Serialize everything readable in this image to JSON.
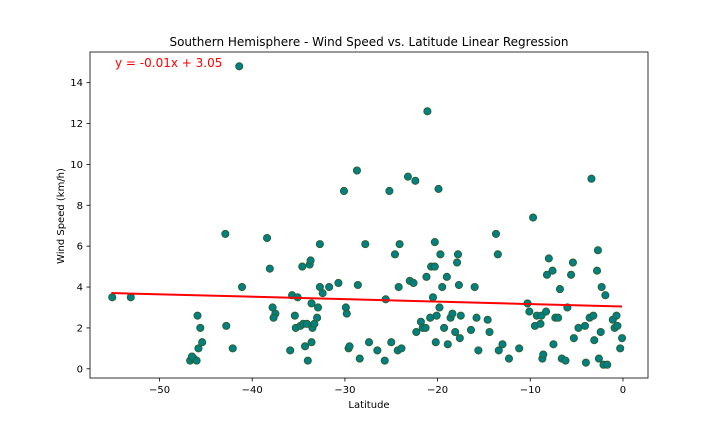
{
  "chart_data": {
    "type": "scatter",
    "title": "Southern Hemisphere - Wind Speed vs. Latitude Linear Regression",
    "xlabel": "Latitude",
    "ylabel": "Wind Speed (km/h)",
    "xlim": [
      -57.5,
      2.7
    ],
    "ylim": [
      -0.45,
      15.5
    ],
    "xticks": [
      -50,
      -40,
      -30,
      -20,
      -10,
      0
    ],
    "yticks": [
      0,
      2,
      4,
      6,
      8,
      10,
      12,
      14
    ],
    "grid": false,
    "marker_color": "#008080",
    "marker_edge_color": "#2e5e2e",
    "line_color": "#ff0000",
    "annotation": "y = -0.01x + 3.05",
    "regression": {
      "slope": -0.0119,
      "intercept": 3.05,
      "x_range": [
        -55.2,
        -0.1
      ]
    },
    "points": [
      [
        -55.1,
        3.5
      ],
      [
        -53.1,
        3.5
      ],
      [
        -46.7,
        0.4
      ],
      [
        -46.3,
        0.5
      ],
      [
        -46.0,
        0.4
      ],
      [
        -46.5,
        0.6
      ],
      [
        -45.9,
        2.6
      ],
      [
        -45.6,
        2.0
      ],
      [
        -45.4,
        1.3
      ],
      [
        -45.8,
        1.0
      ],
      [
        -42.9,
        6.6
      ],
      [
        -42.8,
        2.1
      ],
      [
        -42.1,
        1.0
      ],
      [
        -41.4,
        14.8
      ],
      [
        -41.1,
        4.0
      ],
      [
        -38.4,
        6.4
      ],
      [
        -38.1,
        4.9
      ],
      [
        -37.8,
        3.0
      ],
      [
        -37.5,
        2.7
      ],
      [
        -37.7,
        2.5
      ],
      [
        -35.9,
        0.9
      ],
      [
        -35.7,
        3.6
      ],
      [
        -35.4,
        2.6
      ],
      [
        -35.3,
        2.0
      ],
      [
        -35.1,
        3.5
      ],
      [
        -34.8,
        2.1
      ],
      [
        -34.5,
        2.2
      ],
      [
        -34.6,
        5.0
      ],
      [
        -34.3,
        1.1
      ],
      [
        -34.1,
        2.2
      ],
      [
        -34.0,
        0.4
      ],
      [
        -33.8,
        5.1
      ],
      [
        -33.6,
        3.2
      ],
      [
        -33.7,
        5.3
      ],
      [
        -33.5,
        2.0
      ],
      [
        -33.3,
        2.2
      ],
      [
        -33.6,
        1.3
      ],
      [
        -33.0,
        2.5
      ],
      [
        -32.9,
        3.0
      ],
      [
        -32.7,
        6.1
      ],
      [
        -32.4,
        3.7
      ],
      [
        -32.7,
        4.0
      ],
      [
        -31.7,
        4.0
      ],
      [
        -30.7,
        4.2
      ],
      [
        -30.1,
        8.7
      ],
      [
        -29.9,
        3.0
      ],
      [
        -29.8,
        2.7
      ],
      [
        -29.6,
        1.0
      ],
      [
        -29.5,
        1.1
      ],
      [
        -28.7,
        9.7
      ],
      [
        -28.6,
        4.1
      ],
      [
        -28.4,
        0.5
      ],
      [
        -27.8,
        6.1
      ],
      [
        -27.4,
        1.3
      ],
      [
        -26.5,
        0.9
      ],
      [
        -25.7,
        0.4
      ],
      [
        -25.6,
        3.4
      ],
      [
        -25.2,
        8.7
      ],
      [
        -25.0,
        1.3
      ],
      [
        -24.6,
        5.6
      ],
      [
        -24.2,
        4.0
      ],
      [
        -24.1,
        6.1
      ],
      [
        -24.3,
        0.9
      ],
      [
        -23.9,
        1.0
      ],
      [
        -23.2,
        9.4
      ],
      [
        -23.0,
        4.3
      ],
      [
        -22.6,
        4.2
      ],
      [
        -22.4,
        9.2
      ],
      [
        -22.3,
        1.8
      ],
      [
        -21.8,
        2.3
      ],
      [
        -21.6,
        2.0
      ],
      [
        -21.3,
        2.0
      ],
      [
        -21.2,
        4.5
      ],
      [
        -21.1,
        12.6
      ],
      [
        -20.8,
        2.5
      ],
      [
        -20.7,
        5.0
      ],
      [
        -20.5,
        3.5
      ],
      [
        -20.3,
        5.0
      ],
      [
        -20.2,
        1.3
      ],
      [
        -20.3,
        6.2
      ],
      [
        -20.1,
        2.6
      ],
      [
        -19.9,
        8.8
      ],
      [
        -19.8,
        3.0
      ],
      [
        -19.7,
        5.6
      ],
      [
        -19.5,
        4.0
      ],
      [
        -19.3,
        2.0
      ],
      [
        -19.0,
        4.5
      ],
      [
        -18.9,
        1.2
      ],
      [
        -18.6,
        2.5
      ],
      [
        -18.4,
        2.7
      ],
      [
        -18.1,
        1.8
      ],
      [
        -17.9,
        5.2
      ],
      [
        -17.8,
        5.6
      ],
      [
        -17.6,
        1.5
      ],
      [
        -17.7,
        4.1
      ],
      [
        -17.5,
        2.6
      ],
      [
        -16.4,
        1.9
      ],
      [
        -16.0,
        4.0
      ],
      [
        -15.8,
        2.5
      ],
      [
        -15.6,
        0.9
      ],
      [
        -14.6,
        2.4
      ],
      [
        -14.4,
        1.8
      ],
      [
        -13.7,
        6.6
      ],
      [
        -13.5,
        5.6
      ],
      [
        -13.4,
        0.9
      ],
      [
        -13.0,
        1.2
      ],
      [
        -12.3,
        0.5
      ],
      [
        -11.2,
        1.0
      ],
      [
        -10.3,
        3.2
      ],
      [
        -10.1,
        2.8
      ],
      [
        -9.7,
        7.4
      ],
      [
        -9.5,
        2.1
      ],
      [
        -9.3,
        2.6
      ],
      [
        -8.9,
        2.2
      ],
      [
        -8.8,
        2.6
      ],
      [
        -8.7,
        0.5
      ],
      [
        -8.6,
        0.7
      ],
      [
        -8.2,
        4.6
      ],
      [
        -8.0,
        5.4
      ],
      [
        -8.3,
        2.8
      ],
      [
        -7.6,
        4.8
      ],
      [
        -7.5,
        1.2
      ],
      [
        -7.3,
        2.5
      ],
      [
        -7.0,
        2.5
      ],
      [
        -6.8,
        3.9
      ],
      [
        -6.6,
        0.5
      ],
      [
        -6.2,
        0.4
      ],
      [
        -6.0,
        3.0
      ],
      [
        -5.6,
        4.6
      ],
      [
        -5.4,
        5.2
      ],
      [
        -5.3,
        1.5
      ],
      [
        -4.8,
        2.0
      ],
      [
        -4.1,
        2.1
      ],
      [
        -4.0,
        0.3
      ],
      [
        -3.6,
        2.5
      ],
      [
        -3.4,
        9.3
      ],
      [
        -3.2,
        2.6
      ],
      [
        -3.1,
        1.4
      ],
      [
        -2.8,
        4.8
      ],
      [
        -2.7,
        5.8
      ],
      [
        -2.6,
        0.5
      ],
      [
        -2.4,
        1.8
      ],
      [
        -2.3,
        4.0
      ],
      [
        -2.1,
        0.2
      ],
      [
        -1.9,
        3.6
      ],
      [
        -1.7,
        0.2
      ],
      [
        -1.1,
        2.4
      ],
      [
        -0.9,
        2.0
      ],
      [
        -0.7,
        2.6
      ],
      [
        -0.6,
        2.1
      ],
      [
        -0.3,
        1.0
      ],
      [
        -0.1,
        1.5
      ]
    ]
  }
}
